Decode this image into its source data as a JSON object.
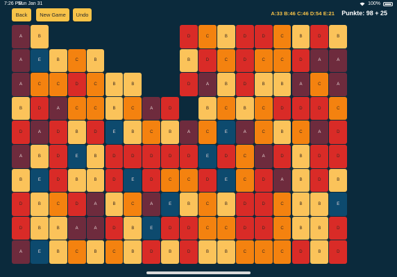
{
  "status": {
    "time": "7:26 PM",
    "date": "Sun Jan 31",
    "battery": "100%"
  },
  "toolbar": {
    "back_label": "Back",
    "new_game_label": "New Game",
    "undo_label": "Undo"
  },
  "counts_text": "A:33 B:46 C:46 D:54 E:21",
  "score_text": "Punkte: 98 + 25",
  "colors": {
    "A": "#6e2b3d",
    "B": "#fbc35a",
    "C": "#f4820f",
    "D": "#d92b27",
    "E": "#0d4a6e",
    "background": "#0b2a3c"
  },
  "board": {
    "rows": [
      "AB.......DCBDDCBDB",
      "AEBCB....BDCDCCDAA",
      "ACCDCBB..DABDBBACA",
      "BDACCBCAD.BCBCDDDC",
      "DADBDEBCBACEACBCAD",
      "ABDEBDDDDDEDCADBDD",
      "BEDBBDEDCCDECDABDB",
      "DBCDABCAEBCBDDCBBE",
      "DBBAADBEDDCCDDCBBD",
      "AEBCBCBDBDBBCCCDBD"
    ]
  }
}
